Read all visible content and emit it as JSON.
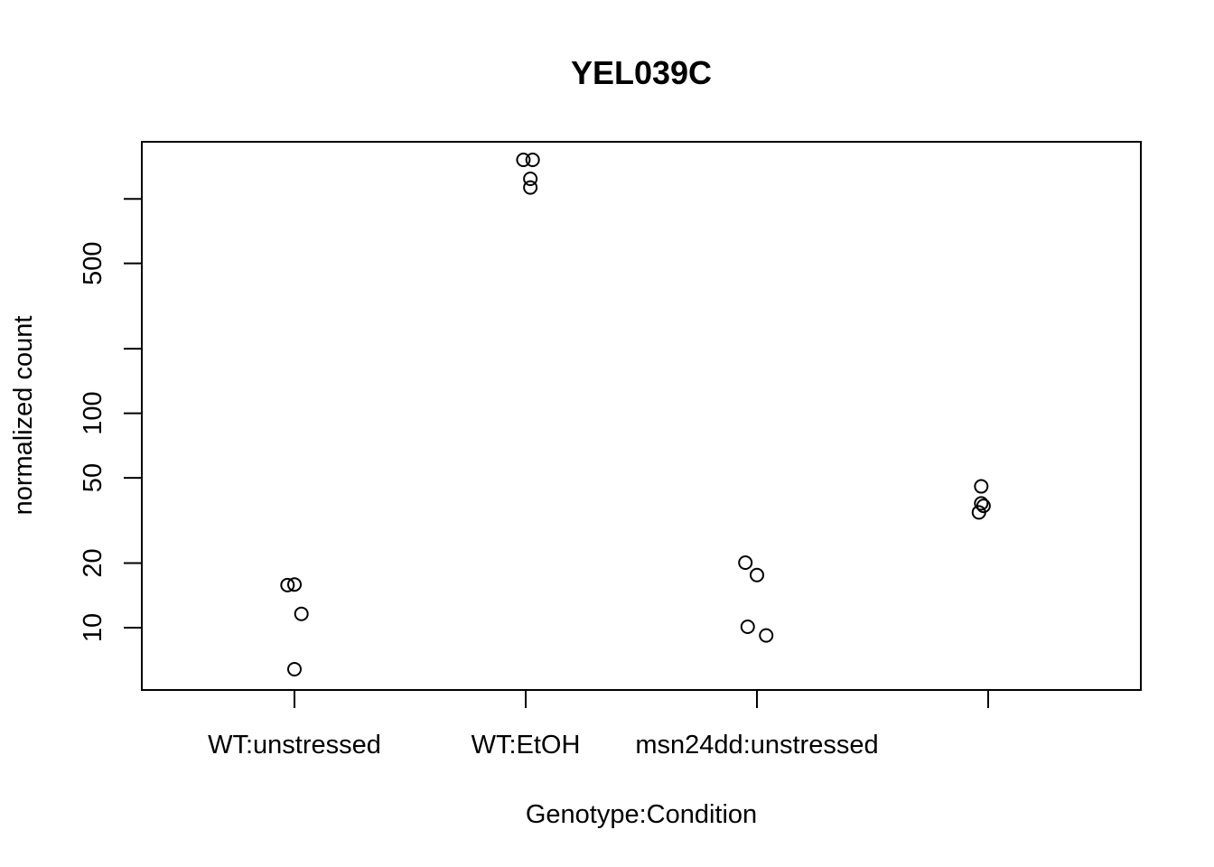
{
  "chart_data": {
    "type": "scatter",
    "title": "YEL039C",
    "xlabel": "Genotype:Condition",
    "ylabel": "normalized count",
    "y_scale": "log",
    "grid": false,
    "categories": [
      "WT:unstressed",
      "WT:EtOH",
      "msn24dd:unstressed",
      ""
    ],
    "y_ticks": [
      {
        "value": 10,
        "label": "10"
      },
      {
        "value": 20,
        "label": "20"
      },
      {
        "value": 50,
        "label": "50"
      },
      {
        "value": 100,
        "label": "100"
      },
      {
        "value": 200,
        "label": ""
      },
      {
        "value": 500,
        "label": "500"
      },
      {
        "value": 1000,
        "label": ""
      }
    ],
    "ylim": [
      5,
      2000
    ],
    "points": [
      {
        "category": 0,
        "jitter": -0.03,
        "y": 15.8
      },
      {
        "category": 0,
        "jitter": 0.0,
        "y": 15.9
      },
      {
        "category": 0,
        "jitter": 0.03,
        "y": 11.6
      },
      {
        "category": 0,
        "jitter": 0.0,
        "y": 6.4
      },
      {
        "category": 1,
        "jitter": -0.01,
        "y": 1520
      },
      {
        "category": 1,
        "jitter": 0.03,
        "y": 1520
      },
      {
        "category": 1,
        "jitter": 0.02,
        "y": 1240
      },
      {
        "category": 1,
        "jitter": 0.02,
        "y": 1130
      },
      {
        "category": 2,
        "jitter": -0.05,
        "y": 20.1
      },
      {
        "category": 2,
        "jitter": 0.0,
        "y": 17.6
      },
      {
        "category": 2,
        "jitter": -0.04,
        "y": 10.1
      },
      {
        "category": 2,
        "jitter": 0.04,
        "y": 9.2
      },
      {
        "category": 3,
        "jitter": -0.03,
        "y": 45.6
      },
      {
        "category": 3,
        "jitter": -0.03,
        "y": 38.0
      },
      {
        "category": 3,
        "jitter": -0.02,
        "y": 37.0
      },
      {
        "category": 3,
        "jitter": -0.04,
        "y": 34.5
      }
    ]
  }
}
